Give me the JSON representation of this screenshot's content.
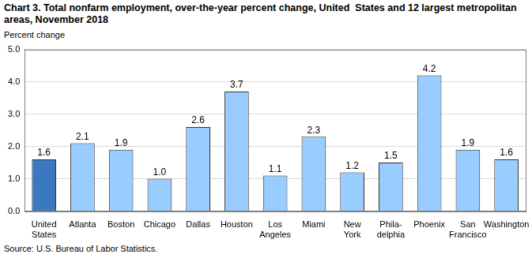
{
  "chart_data": {
    "type": "bar",
    "title": "Chart 3. Total nonfarm employment, over-the-year percent change, United  States and 12 largest metropolitan areas, November 2018",
    "y_label": "Percent change",
    "annotations": [
      "Source: U.S. Bureau of Labor Statistics."
    ],
    "categories": [
      "United\nStates",
      "Atlanta",
      "Boston",
      "Chicago",
      "Dallas",
      "Houston",
      "Los\nAngeles",
      "Miami",
      "New\nYork",
      "Phila-\ndelphia",
      "Phoenix",
      "San\nFrancisco",
      "Washington"
    ],
    "values": [
      1.6,
      2.1,
      1.9,
      1.0,
      2.6,
      3.7,
      1.1,
      2.3,
      1.2,
      1.5,
      4.2,
      1.9,
      1.6
    ],
    "value_labels": [
      "1.6",
      "2.1",
      "1.9",
      "1.0",
      "2.6",
      "3.7",
      "1.1",
      "2.3",
      "1.2",
      "1.5",
      "4.2",
      "1.9",
      "1.6"
    ],
    "colors": [
      "#3a78c2",
      "#99ccff",
      "#99ccff",
      "#99ccff",
      "#99ccff",
      "#99ccff",
      "#99ccff",
      "#99ccff",
      "#99ccff",
      "#99ccff",
      "#99ccff",
      "#99ccff",
      "#99ccff"
    ],
    "ylim": [
      0,
      5
    ],
    "yticks": [
      {
        "value": 0,
        "label": "0.0"
      },
      {
        "value": 1,
        "label": "1.0"
      },
      {
        "value": 2,
        "label": "2.0"
      },
      {
        "value": 3,
        "label": "3.0"
      },
      {
        "value": 4,
        "label": "4.0"
      },
      {
        "value": 5,
        "label": "5.0"
      }
    ],
    "grid": true,
    "data_labels": true
  }
}
